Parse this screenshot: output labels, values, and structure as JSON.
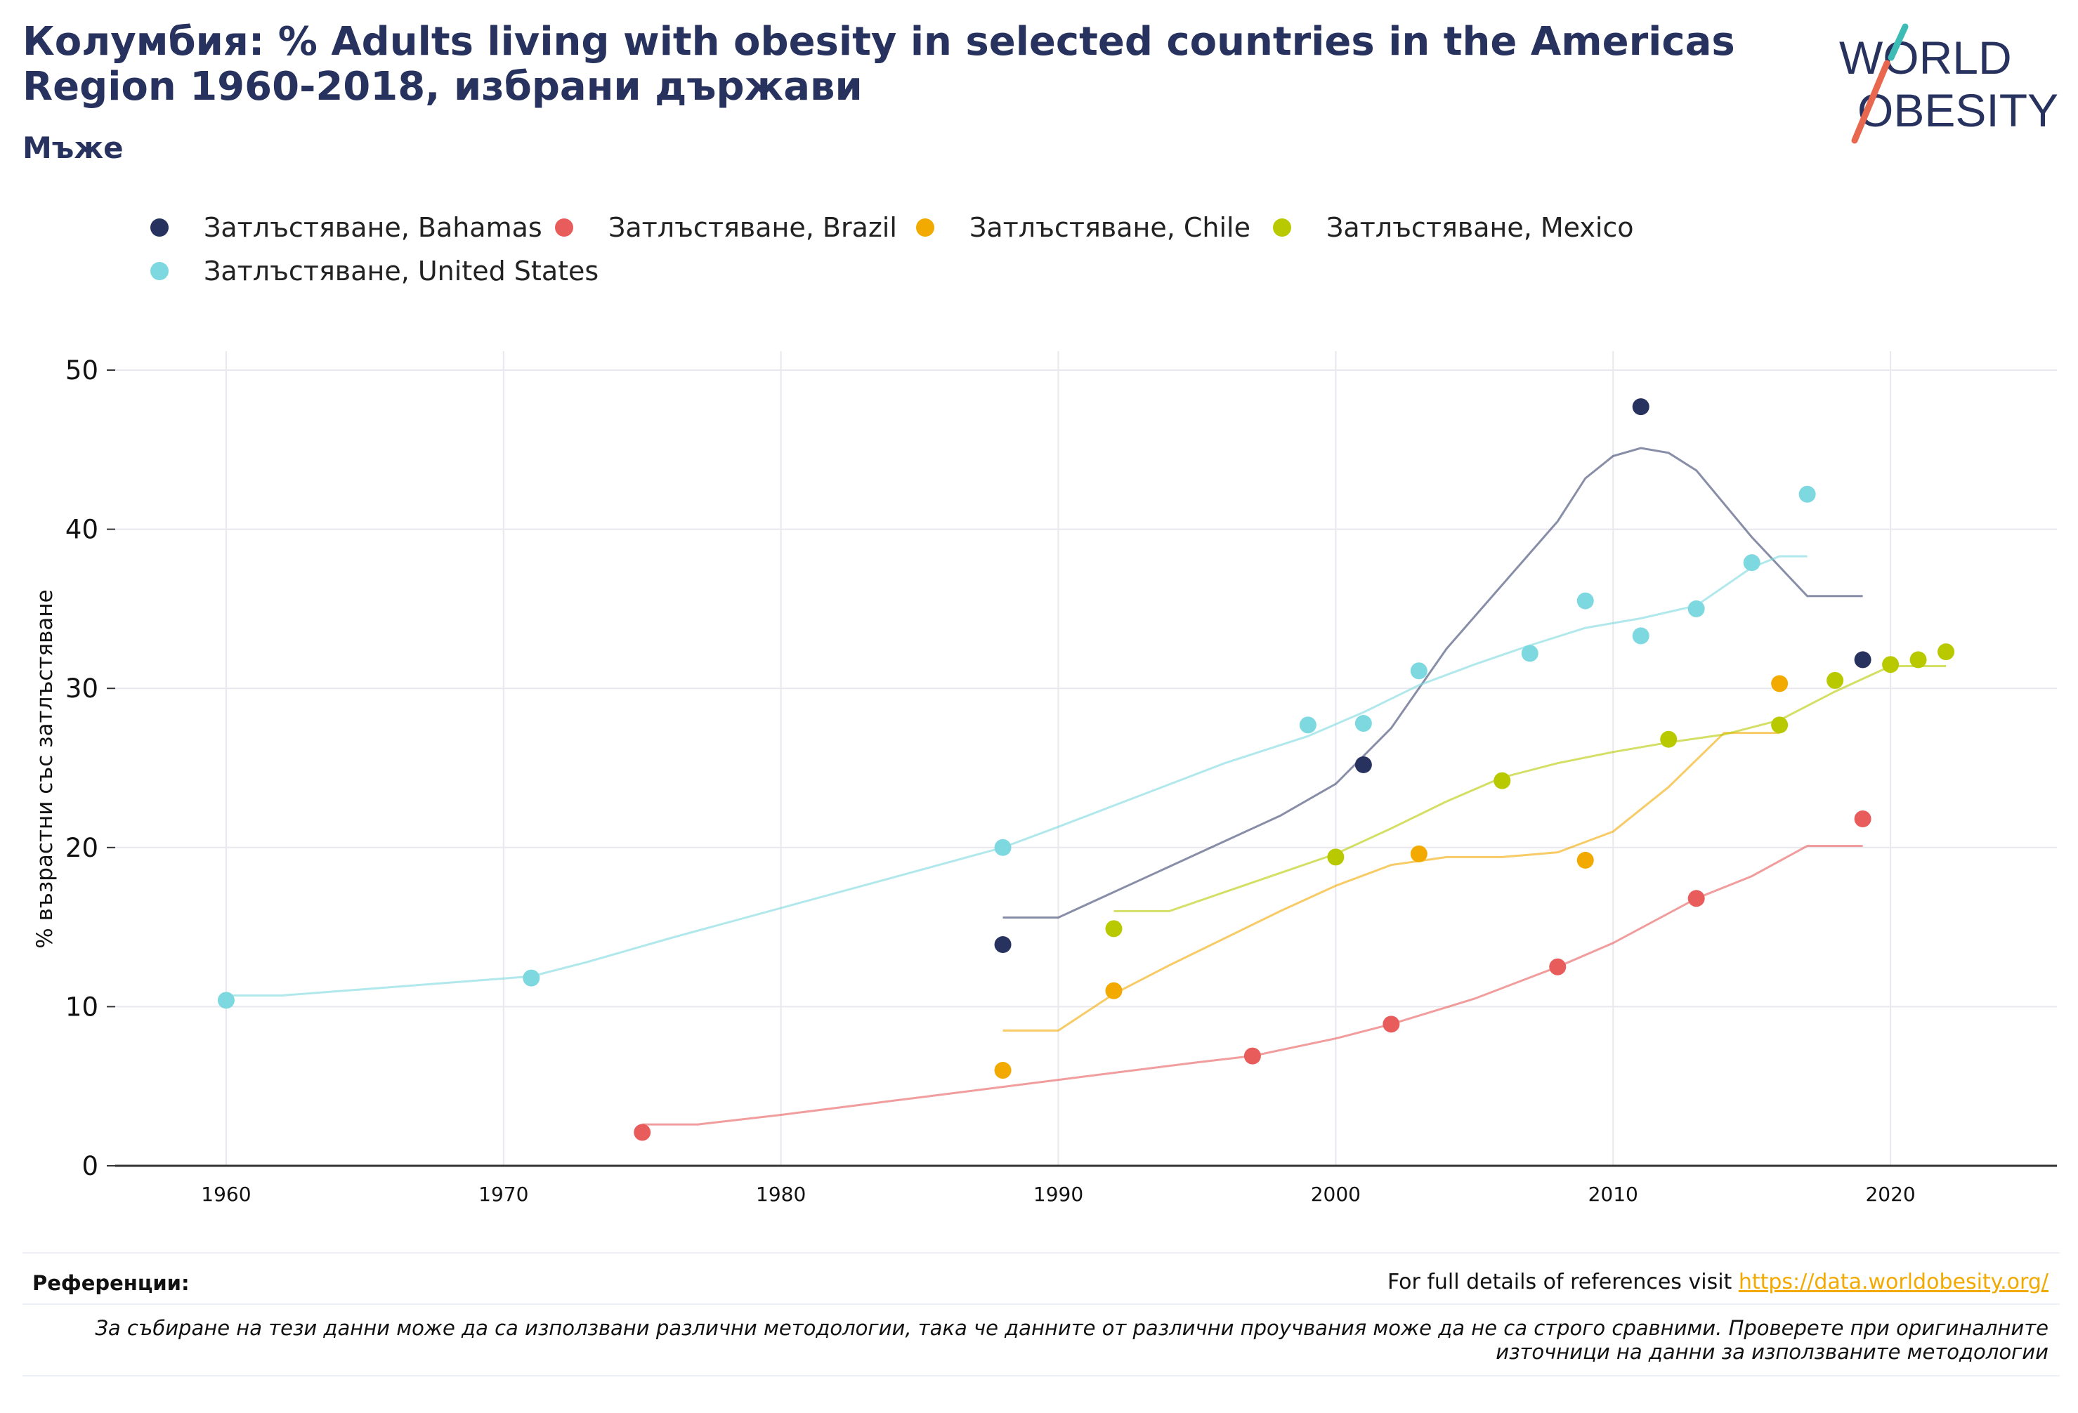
{
  "title": "Колумбия: % Adults living with obesity in selected countries in the Americas Region 1960-2018, избрани държави",
  "subtitle": "Мъже",
  "logo": {
    "line1": "WORLD",
    "line2": "OBESITY"
  },
  "references": {
    "label": "Референции:",
    "text": "For full details of references visit ",
    "link": "https://data.worldobesity.org/",
    "disclaimer": "За събиране на тези данни може да са използвани различни методологии, така че данните от различни проучвания може да не са строго сравними. Проверете при оригиналните източници на данни за използваните методологии"
  },
  "chart_data": {
    "type": "scatter",
    "ylabel": "% възрастни със затлъстяване",
    "xlabel": "",
    "xlim": [
      1956,
      2026
    ],
    "ylim": [
      0,
      50
    ],
    "xticks": [
      1960,
      1970,
      1980,
      1990,
      2000,
      2010,
      2020
    ],
    "yticks": [
      0,
      10,
      20,
      30,
      40,
      50
    ],
    "grid": true,
    "legend_position": "top-left",
    "series": [
      {
        "name": "Затлъстяване, Bahamas",
        "color": "#27325e",
        "points": [
          [
            1988,
            13.9
          ],
          [
            2001,
            25.2
          ],
          [
            2011,
            47.7
          ],
          [
            2019,
            31.8
          ]
        ],
        "trend": [
          [
            1988,
            15.6
          ],
          [
            1990,
            15.6
          ],
          [
            1992,
            17.2
          ],
          [
            1994,
            18.8
          ],
          [
            1996,
            20.4
          ],
          [
            1998,
            22.0
          ],
          [
            2000,
            24.0
          ],
          [
            2002,
            27.5
          ],
          [
            2004,
            32.5
          ],
          [
            2006,
            36.5
          ],
          [
            2008,
            40.5
          ],
          [
            2009,
            43.2
          ],
          [
            2010,
            44.6
          ],
          [
            2011,
            45.1
          ],
          [
            2012,
            44.8
          ],
          [
            2013,
            43.7
          ],
          [
            2015,
            39.5
          ],
          [
            2017,
            35.8
          ],
          [
            2019,
            35.8
          ]
        ]
      },
      {
        "name": "Затлъстяване, Brazil",
        "color": "#e95c5c",
        "points": [
          [
            1975,
            2.1
          ],
          [
            1997,
            6.9
          ],
          [
            2002,
            8.9
          ],
          [
            2008,
            12.5
          ],
          [
            2013,
            16.8
          ],
          [
            2019,
            21.8
          ]
        ],
        "trend": [
          [
            1975,
            2.6
          ],
          [
            1977,
            2.6
          ],
          [
            1980,
            3.2
          ],
          [
            1985,
            4.3
          ],
          [
            1990,
            5.4
          ],
          [
            1995,
            6.5
          ],
          [
            1997,
            6.9
          ],
          [
            2000,
            8.0
          ],
          [
            2002,
            8.9
          ],
          [
            2005,
            10.5
          ],
          [
            2008,
            12.5
          ],
          [
            2010,
            14.0
          ],
          [
            2013,
            16.8
          ],
          [
            2015,
            18.2
          ],
          [
            2017,
            20.1
          ],
          [
            2019,
            20.1
          ]
        ]
      },
      {
        "name": "Затлъстяване, Chile",
        "color": "#f2a900",
        "points": [
          [
            1988,
            6.0
          ],
          [
            1992,
            11.0
          ],
          [
            2003,
            19.6
          ],
          [
            2009,
            19.2
          ],
          [
            2016,
            30.3
          ]
        ],
        "trend": [
          [
            1988,
            8.5
          ],
          [
            1990,
            8.5
          ],
          [
            1992,
            10.8
          ],
          [
            1994,
            12.6
          ],
          [
            1996,
            14.3
          ],
          [
            1998,
            16.0
          ],
          [
            2000,
            17.6
          ],
          [
            2002,
            18.9
          ],
          [
            2004,
            19.4
          ],
          [
            2006,
            19.4
          ],
          [
            2008,
            19.7
          ],
          [
            2010,
            21.0
          ],
          [
            2012,
            23.8
          ],
          [
            2014,
            27.2
          ],
          [
            2016,
            27.2
          ]
        ]
      },
      {
        "name": "Затлъстяване, Mexico",
        "color": "#b8c900",
        "points": [
          [
            1992,
            14.9
          ],
          [
            2000,
            19.4
          ],
          [
            2006,
            24.2
          ],
          [
            2012,
            26.8
          ],
          [
            2016,
            27.7
          ],
          [
            2018,
            30.5
          ],
          [
            2020,
            31.5
          ],
          [
            2021,
            31.8
          ],
          [
            2022,
            32.3
          ]
        ],
        "trend": [
          [
            1992,
            16.0
          ],
          [
            1994,
            16.0
          ],
          [
            1996,
            17.2
          ],
          [
            1998,
            18.4
          ],
          [
            2000,
            19.6
          ],
          [
            2002,
            21.2
          ],
          [
            2004,
            22.9
          ],
          [
            2006,
            24.4
          ],
          [
            2008,
            25.3
          ],
          [
            2010,
            26.0
          ],
          [
            2012,
            26.6
          ],
          [
            2014,
            27.1
          ],
          [
            2016,
            28.0
          ],
          [
            2018,
            29.8
          ],
          [
            2020,
            31.4
          ],
          [
            2022,
            31.4
          ]
        ]
      },
      {
        "name": "Затлъстяване, United States",
        "color": "#7dd8e0",
        "points": [
          [
            1960,
            10.4
          ],
          [
            1971,
            11.8
          ],
          [
            1988,
            20.0
          ],
          [
            1999,
            27.7
          ],
          [
            2001,
            27.8
          ],
          [
            2003,
            31.1
          ],
          [
            2007,
            32.2
          ],
          [
            2009,
            35.5
          ],
          [
            2011,
            33.3
          ],
          [
            2013,
            35.0
          ],
          [
            2015,
            37.9
          ],
          [
            2017,
            42.2
          ]
        ],
        "trend": [
          [
            1960,
            10.7
          ],
          [
            1962,
            10.7
          ],
          [
            1965,
            11.1
          ],
          [
            1968,
            11.5
          ],
          [
            1971,
            11.9
          ],
          [
            1973,
            12.8
          ],
          [
            1976,
            14.3
          ],
          [
            1980,
            16.2
          ],
          [
            1984,
            18.1
          ],
          [
            1988,
            20.0
          ],
          [
            1990,
            21.3
          ],
          [
            1993,
            23.3
          ],
          [
            1996,
            25.3
          ],
          [
            1999,
            27.0
          ],
          [
            2001,
            28.5
          ],
          [
            2003,
            30.2
          ],
          [
            2005,
            31.5
          ],
          [
            2007,
            32.7
          ],
          [
            2009,
            33.8
          ],
          [
            2011,
            34.4
          ],
          [
            2013,
            35.2
          ],
          [
            2015,
            37.6
          ],
          [
            2016,
            38.3
          ],
          [
            2017,
            38.3
          ]
        ]
      }
    ]
  }
}
